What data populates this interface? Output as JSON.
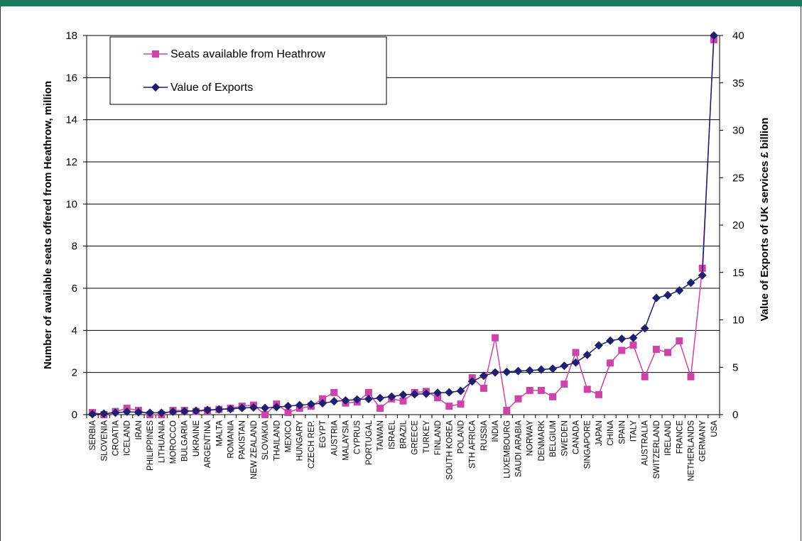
{
  "chart_data": {
    "type": "line",
    "categories": [
      "SERBIA",
      "SLOVENIA",
      "CROATIA",
      "ICELAND",
      "IRAN",
      "PHILIPPINES",
      "LITHUANIA",
      "MOROCCO",
      "BULGARIA",
      "UKRAINE",
      "ARGENTINA",
      "MALTA",
      "ROMANIA",
      "PAKISTAN",
      "NEW ZEALAND",
      "SLOVAKIA",
      "THAILAND",
      "MEXICO",
      "HUNGARY",
      "CZECH REP.",
      "EGYPT",
      "AUSTRIA",
      "MALAYSIA",
      "CYPRUS",
      "PORTUGAL",
      "TAIWAN",
      "ISRAEL",
      "BRAZIL",
      "GREECE",
      "TURKEY",
      "FINLAND",
      "SOUTH KOREA",
      "POLAND",
      "STH AFRICA",
      "RUSSIA",
      "INDIA",
      "LUXEMBOURG",
      "SAUDI ARABIA",
      "NORWAY",
      "DENMARK",
      "BELGIUM",
      "SWEDEN",
      "CANADA",
      "SINGAPORE",
      "JAPAN",
      "CHINA",
      "SPAIN",
      "ITALY",
      "AUSTRALIA",
      "SWITZERLAND",
      "IRELAND",
      "FRANCE",
      "NETHERLANDS",
      "GERMANY",
      "USA"
    ],
    "series": [
      {
        "name": "Seats available from Heathrow",
        "axis": "left",
        "color": "#cc44aa",
        "marker": "square",
        "values": [
          0.1,
          0.0,
          0.15,
          0.3,
          0.2,
          0.0,
          0.0,
          0.2,
          0.2,
          0.15,
          0.2,
          0.25,
          0.3,
          0.4,
          0.45,
          0.0,
          0.5,
          0.1,
          0.3,
          0.4,
          0.75,
          1.05,
          0.55,
          0.6,
          1.05,
          0.3,
          0.75,
          0.65,
          1.05,
          1.1,
          0.8,
          0.4,
          0.5,
          1.75,
          1.25,
          3.65,
          0.2,
          0.75,
          1.15,
          1.15,
          0.85,
          1.45,
          2.95,
          1.2,
          0.95,
          2.45,
          3.05,
          3.3,
          1.8,
          3.1,
          2.95,
          3.5,
          1.8,
          6.95,
          17.8
        ]
      },
      {
        "name": "Value of Exports",
        "axis": "right",
        "color": "#1f1f6e",
        "marker": "diamond",
        "values": [
          0.05,
          0.1,
          0.2,
          0.3,
          0.25,
          0.2,
          0.2,
          0.3,
          0.35,
          0.4,
          0.5,
          0.55,
          0.6,
          0.7,
          0.75,
          0.7,
          0.8,
          0.9,
          1.0,
          1.1,
          1.2,
          1.4,
          1.5,
          1.6,
          1.65,
          1.75,
          1.9,
          2.1,
          2.15,
          2.2,
          2.3,
          2.35,
          2.5,
          3.5,
          4.1,
          4.45,
          4.5,
          4.6,
          4.65,
          4.75,
          4.85,
          5.15,
          5.5,
          6.3,
          7.3,
          7.8,
          8.0,
          8.1,
          9.1,
          12.3,
          12.6,
          13.1,
          13.9,
          14.7,
          40.0
        ]
      }
    ],
    "ylabel": "Number of available seats offered from Heathrow, million",
    "ylabel_right": "Value of Exports of UK services £ billion",
    "ylim": [
      0,
      18
    ],
    "ylim_right": [
      0,
      40
    ],
    "yticks": [
      0,
      2,
      4,
      6,
      8,
      10,
      12,
      14,
      16,
      18
    ],
    "yticks_right": [
      0,
      5,
      10,
      15,
      20,
      25,
      30,
      35,
      40
    ],
    "grid": true,
    "legend_position": "top-left"
  }
}
